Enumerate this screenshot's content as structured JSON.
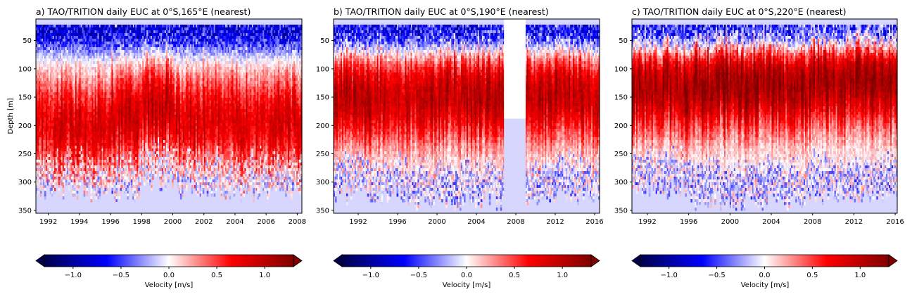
{
  "chart_data": [
    {
      "type": "heatmap",
      "title": "a) TAO/TRITION daily EUC at 0°S,165°E (nearest)",
      "xlabel": "",
      "ylabel": "Depth [m]",
      "xlim": [
        1991.2,
        2008.3
      ],
      "ylim": [
        355,
        12
      ],
      "xticks": [
        "1992",
        "1994",
        "1996",
        "1998",
        "2000",
        "2002",
        "2004",
        "2006",
        "2008"
      ],
      "yticks": [
        "50",
        "100",
        "150",
        "200",
        "250",
        "300",
        "350"
      ],
      "top_depth": 20,
      "segments": [
        {
          "start": 1991.2,
          "end": 1996.0,
          "core": 200,
          "strength": 0.85,
          "bottom": 315
        },
        {
          "start": 1996.0,
          "end": 1998.0,
          "core": 185,
          "strength": 0.9,
          "bottom": 320
        },
        {
          "start": 1998.0,
          "end": 2000.0,
          "core": 160,
          "strength": 1.0,
          "bottom": 300
        },
        {
          "start": 2000.0,
          "end": 2004.0,
          "core": 190,
          "strength": 0.9,
          "bottom": 310
        },
        {
          "start": 2004.0,
          "end": 2008.3,
          "core": 195,
          "strength": 0.85,
          "bottom": 315
        }
      ],
      "gaps": [],
      "colorbar": {
        "label": "Velocity [m/s]",
        "ticks": [
          "−1.0",
          "−0.5",
          "0.0",
          "0.5",
          "1.0"
        ],
        "range": [
          -1.3,
          1.3
        ]
      }
    },
    {
      "type": "heatmap",
      "title": "b) TAO/TRITION daily EUC at 0°S,190°E (nearest)",
      "xlabel": "",
      "ylabel": "",
      "xlim": [
        1989.5,
        2016.5
      ],
      "ylim": [
        355,
        12
      ],
      "xticks": [
        "1992",
        "1996",
        "2000",
        "2004",
        "2008",
        "2012",
        "2016"
      ],
      "yticks": [
        "50",
        "100",
        "150",
        "200",
        "250",
        "300",
        "350"
      ],
      "top_depth": 20,
      "segments": [
        {
          "start": 1989.5,
          "end": 1997.0,
          "core": 155,
          "strength": 1.0,
          "bottom": 320
        },
        {
          "start": 1997.0,
          "end": 2006.8,
          "core": 145,
          "strength": 1.05,
          "bottom": 330
        },
        {
          "start": 2009.0,
          "end": 2016.5,
          "core": 150,
          "strength": 1.0,
          "bottom": 320
        }
      ],
      "gaps": [
        {
          "start": 2006.8,
          "end": 2009.0,
          "bottom": 188
        }
      ],
      "colorbar": {
        "label": "Velocity [m/s]",
        "ticks": [
          "−1.0",
          "−0.5",
          "0.0",
          "0.5",
          "1.0"
        ],
        "range": [
          -1.3,
          1.3
        ]
      }
    },
    {
      "type": "heatmap",
      "title": "c) TAO/TRITION daily EUC at 0°S,220°E (nearest)",
      "xlabel": "",
      "ylabel": "",
      "xlim": [
        1990.5,
        2016.2
      ],
      "ylim": [
        355,
        12
      ],
      "xticks": [
        "1992",
        "1996",
        "2000",
        "2004",
        "2008",
        "2012",
        "2016"
      ],
      "yticks": [
        "50",
        "100",
        "150",
        "200",
        "250",
        "300",
        "350"
      ],
      "top_depth": 20,
      "segments": [
        {
          "start": 1990.5,
          "end": 1996.0,
          "core": 130,
          "strength": 1.15,
          "bottom": 310
        },
        {
          "start": 1996.0,
          "end": 2008.0,
          "core": 125,
          "strength": 1.2,
          "bottom": 330
        },
        {
          "start": 2008.0,
          "end": 2016.2,
          "core": 120,
          "strength": 1.2,
          "bottom": 320
        }
      ],
      "gaps": [],
      "colorbar": {
        "label": "Velocity [m/s]",
        "ticks": [
          "−1.0",
          "−0.5",
          "0.0",
          "0.5",
          "1.0"
        ],
        "range": [
          -1.3,
          1.3
        ]
      }
    }
  ],
  "colors": {
    "background_fill": "#d6d6ff",
    "colormap": [
      "#00004c",
      "#0000ff",
      "#ffffff",
      "#ff0000",
      "#800000"
    ]
  }
}
